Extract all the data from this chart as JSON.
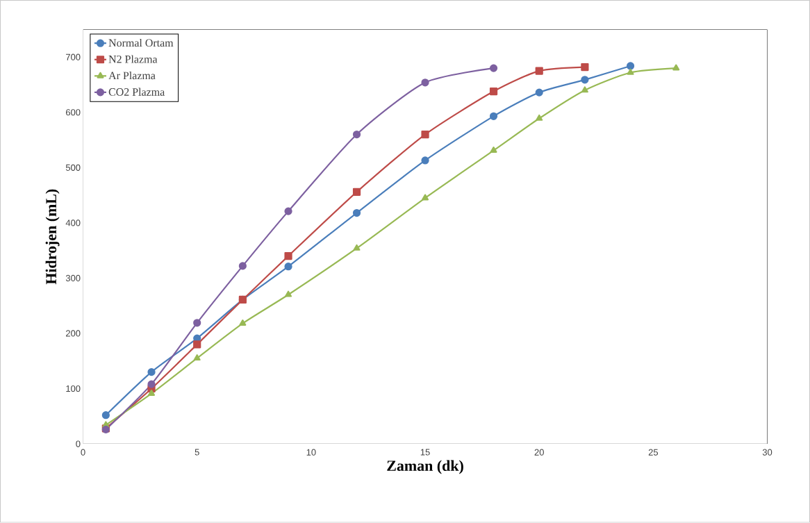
{
  "chart_data": {
    "type": "line",
    "xlabel": "Zaman (dk)",
    "ylabel": "Hidrojen (mL)",
    "xlim": [
      0,
      30
    ],
    "xticks": [
      0,
      5,
      10,
      15,
      20,
      25,
      30
    ],
    "ylim": [
      0,
      750
    ],
    "yticks": [
      0,
      100,
      200,
      300,
      400,
      500,
      600,
      700
    ],
    "grid": false,
    "legend": "top left",
    "line_style": "solid",
    "series": [
      {
        "name": "Normal Ortam",
        "color": "#4a7ebb",
        "marker": "circle",
        "x": [
          1,
          3,
          5,
          7,
          9,
          12,
          15,
          18,
          20,
          22,
          24
        ],
        "values": [
          52,
          130,
          191,
          261,
          321,
          418,
          513,
          593,
          636,
          659,
          684
        ]
      },
      {
        "name": "N2 Plazma",
        "color": "#be4b48",
        "marker": "square",
        "x": [
          1,
          3,
          5,
          7,
          9,
          12,
          15,
          18,
          20,
          22
        ],
        "values": [
          28,
          100,
          180,
          261,
          340,
          456,
          560,
          638,
          675,
          682
        ]
      },
      {
        "name": "Ar Plazma",
        "color": "#98b954",
        "marker": "triangle",
        "x": [
          1,
          3,
          5,
          7,
          9,
          12,
          15,
          18,
          20,
          22,
          24,
          26
        ],
        "values": [
          34,
          91,
          155,
          218,
          270,
          354,
          445,
          531,
          589,
          640,
          672,
          680
        ]
      },
      {
        "name": "CO2 Plazma",
        "color": "#7d60a0",
        "marker": "circle",
        "x": [
          1,
          3,
          5,
          7,
          9,
          12,
          15,
          18
        ],
        "values": [
          26,
          108,
          219,
          322,
          421,
          560,
          654,
          680
        ]
      }
    ]
  }
}
